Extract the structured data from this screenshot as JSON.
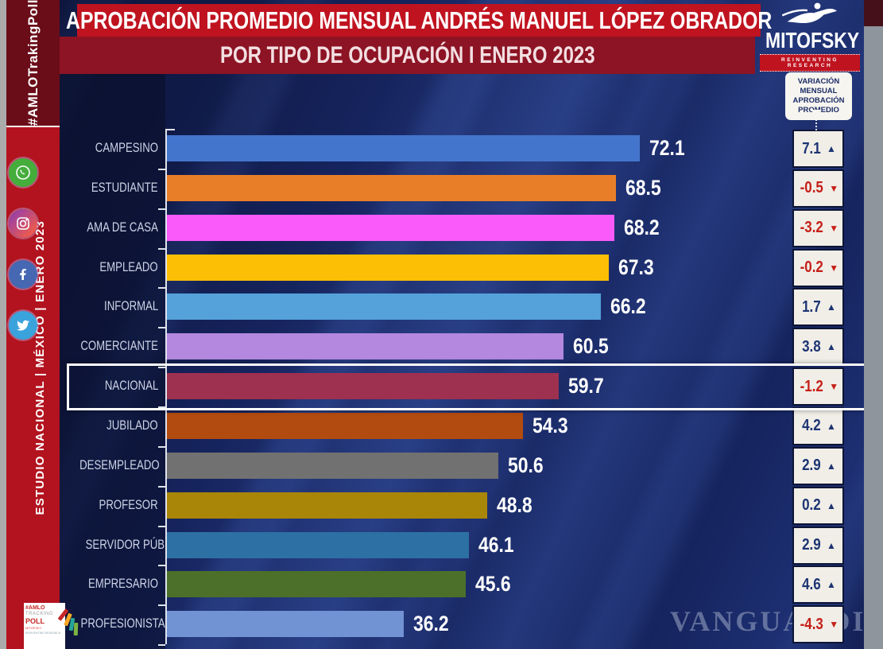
{
  "header": {
    "title_line1": "APROBACIÓN PROMEDIO MENSUAL ANDRÉS MANUEL LÓPEZ OBRADOR",
    "title_line2": "POR TIPO DE OCUPACIÓN I ENERO 2023"
  },
  "brand": {
    "name": "MITOFSKY",
    "tagline": "REINVENTING RESEARCH"
  },
  "sidebar": {
    "hashtag": "#AMLOTrakingPoll",
    "study_line": "ESTUDIO NACIONAL | MÉXICO | ENERO 2023",
    "social_icons": [
      "whatsapp",
      "instagram",
      "facebook",
      "twitter"
    ],
    "corner_logo": {
      "line1": "#AMLO",
      "line2": "TRACKING",
      "line3": "POLL",
      "line4": "MITOFSKY",
      "line5": "REINVENTING RESEARCH"
    }
  },
  "variation_callout": "VARIACIÓN MENSUAL APROBACIÓN PROMEDIO",
  "watermark": "VANGUARDIA.MX",
  "icons": {
    "up": "▲",
    "down": "▼"
  },
  "colors": {
    "up": "#1c3472",
    "down": "#c52018",
    "accent_red": "#c01320",
    "background": "#16245e"
  },
  "chart_data": {
    "type": "bar",
    "orientation": "horizontal",
    "title": "APROBACIÓN PROMEDIO MENSUAL ANDRÉS MANUEL LÓPEZ OBRADOR POR TIPO DE OCUPACIÓN | ENERO 2023",
    "xlabel": "",
    "ylabel": "",
    "xlim": [
      0,
      95
    ],
    "grid": false,
    "legend": "none",
    "highlight_category": "NACIONAL",
    "highlight_index": 6,
    "variation_column_label": "VARIACIÓN MENSUAL APROBACIÓN PROMEDIO",
    "categories": [
      "CAMPESINO",
      "ESTUDIANTE",
      "AMA DE CASA",
      "EMPLEADO",
      "INFORMAL",
      "COMERCIANTE",
      "NACIONAL",
      "JUBILADO",
      "DESEMPLEADO",
      "PROFESOR",
      "SERVIDOR PÚBLICO",
      "EMPRESARIO",
      "PROFESIONISTA"
    ],
    "values": [
      72.1,
      68.5,
      68.2,
      67.3,
      66.2,
      60.5,
      59.7,
      54.3,
      50.6,
      48.8,
      46.1,
      45.6,
      36.2
    ],
    "variations": [
      7.1,
      -0.5,
      -3.2,
      -0.2,
      1.7,
      3.8,
      -1.2,
      4.2,
      2.9,
      0.2,
      2.9,
      4.6,
      -4.3
    ],
    "rows": [
      {
        "label": "CAMPESINO",
        "value": 72.1,
        "value_text": "72.1",
        "variation": 7.1,
        "variation_text": "7.1",
        "direction": "up",
        "color": "#4475cc"
      },
      {
        "label": "ESTUDIANTE",
        "value": 68.5,
        "value_text": "68.5",
        "variation": -0.5,
        "variation_text": "-0.5",
        "direction": "down",
        "color": "#e97e28"
      },
      {
        "label": "AMA DE CASA",
        "value": 68.2,
        "value_text": "68.2",
        "variation": -3.2,
        "variation_text": "-3.2",
        "direction": "down",
        "color": "#f95af9"
      },
      {
        "label": "EMPLEADO",
        "value": 67.3,
        "value_text": "67.3",
        "variation": -0.2,
        "variation_text": "-0.2",
        "direction": "down",
        "color": "#fcbf05"
      },
      {
        "label": "INFORMAL",
        "value": 66.2,
        "value_text": "66.2",
        "variation": 1.7,
        "variation_text": "1.7",
        "direction": "up",
        "color": "#55a1d9"
      },
      {
        "label": "COMERCIANTE",
        "value": 60.5,
        "value_text": "60.5",
        "variation": 3.8,
        "variation_text": "3.8",
        "direction": "up",
        "color": "#b388de"
      },
      {
        "label": "NACIONAL",
        "value": 59.7,
        "value_text": "59.7",
        "variation": -1.2,
        "variation_text": "-1.2",
        "direction": "down",
        "color": "#9e3050"
      },
      {
        "label": "JUBILADO",
        "value": 54.3,
        "value_text": "54.3",
        "variation": 4.2,
        "variation_text": "4.2",
        "direction": "up",
        "color": "#b24b10"
      },
      {
        "label": "DESEMPLEADO",
        "value": 50.6,
        "value_text": "50.6",
        "variation": 2.9,
        "variation_text": "2.9",
        "direction": "up",
        "color": "#717171"
      },
      {
        "label": "PROFESOR",
        "value": 48.8,
        "value_text": "48.8",
        "variation": 0.2,
        "variation_text": "0.2",
        "direction": "up",
        "color": "#aa8608"
      },
      {
        "label": "SERVIDOR PÚBLICO",
        "value": 46.1,
        "value_text": "46.1",
        "variation": 2.9,
        "variation_text": "2.9",
        "direction": "up",
        "color": "#2d70a4"
      },
      {
        "label": "EMPRESARIO",
        "value": 45.6,
        "value_text": "45.6",
        "variation": 4.6,
        "variation_text": "4.6",
        "direction": "up",
        "color": "#4c7029"
      },
      {
        "label": "PROFESIONISTA",
        "value": 36.2,
        "value_text": "36.2",
        "variation": -4.3,
        "variation_text": "-4.3",
        "direction": "down",
        "color": "#7192d3"
      }
    ]
  }
}
